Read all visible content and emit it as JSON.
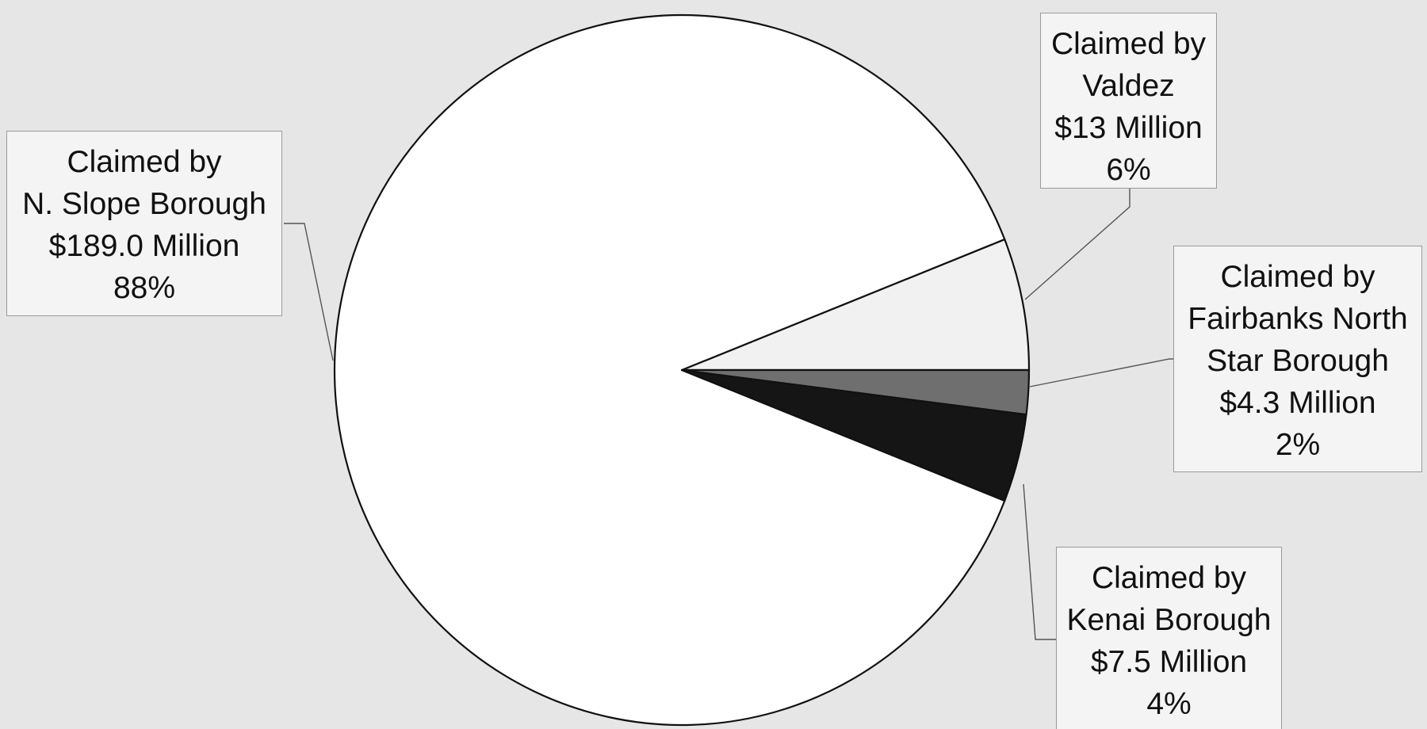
{
  "chart_data": {
    "type": "pie",
    "title": "",
    "slices": [
      {
        "label_line1": "Claimed by",
        "label_line2": "N. Slope Borough",
        "label_line3": "",
        "value_text": "$189.0 Million",
        "percent_text": "88%",
        "value_millions": 189.0,
        "percent": 88,
        "color": "#ffffff"
      },
      {
        "label_line1": "Claimed by",
        "label_line2": "Valdez",
        "label_line3": "",
        "value_text": "$13 Million",
        "percent_text": "6%",
        "value_millions": 13,
        "percent": 6,
        "color": "#f1f1f1"
      },
      {
        "label_line1": "Claimed by",
        "label_line2": "Fairbanks North",
        "label_line3": "Star Borough",
        "value_text": "$4.3 Million",
        "percent_text": "2%",
        "value_millions": 4.3,
        "percent": 2,
        "color": "#6f6f6f"
      },
      {
        "label_line1": "Claimed by",
        "label_line2": "Kenai Borough",
        "label_line3": "",
        "value_text": "$7.5 Million",
        "percent_text": "4%",
        "value_millions": 7.5,
        "percent": 4,
        "color": "#151515"
      }
    ]
  }
}
